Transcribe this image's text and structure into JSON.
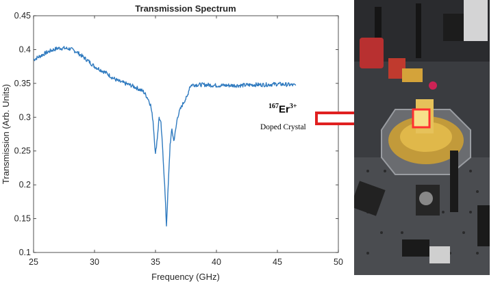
{
  "chart_data": {
    "type": "line",
    "title": "Transmission Spectrum",
    "xlabel": "Frequency (GHz)",
    "ylabel": "Transmission (Arb. Units)",
    "xlim": [
      25,
      50
    ],
    "ylim": [
      0.1,
      0.45
    ],
    "xticks": [
      25,
      30,
      35,
      40,
      45,
      50
    ],
    "yticks": [
      0.1,
      0.15,
      0.2,
      0.25,
      0.3,
      0.35,
      0.4,
      0.45
    ],
    "xtick_labels": [
      "25",
      "30",
      "35",
      "40",
      "45",
      "50"
    ],
    "ytick_labels": [
      "0.1",
      "0.15",
      "0.2",
      "0.25",
      "0.3",
      "0.35",
      "0.4",
      "0.45"
    ],
    "grid": false,
    "line_color": "#2f7abf",
    "series": [
      {
        "x": [
          25.0,
          25.5,
          26.0,
          26.5,
          27.0,
          27.5,
          28.0,
          28.5,
          29.0,
          29.5,
          30.0,
          30.5,
          31.0,
          31.5,
          32.0,
          32.5,
          33.0,
          33.5,
          34.0,
          34.2,
          34.4,
          34.6,
          34.8,
          35.0,
          35.15,
          35.3,
          35.45,
          35.6,
          35.75,
          35.9,
          36.05,
          36.2,
          36.35,
          36.5,
          36.65,
          36.8,
          37.0,
          37.2,
          37.4,
          37.6,
          37.8,
          38.0,
          39.0,
          40.0,
          41.0,
          42.0,
          43.0,
          44.0,
          45.0,
          46.0,
          46.5
        ],
        "y": [
          0.385,
          0.39,
          0.395,
          0.399,
          0.402,
          0.402,
          0.401,
          0.397,
          0.39,
          0.383,
          0.375,
          0.37,
          0.365,
          0.358,
          0.353,
          0.35,
          0.347,
          0.343,
          0.338,
          0.333,
          0.327,
          0.318,
          0.295,
          0.245,
          0.27,
          0.3,
          0.29,
          0.25,
          0.2,
          0.14,
          0.2,
          0.26,
          0.282,
          0.265,
          0.28,
          0.3,
          0.31,
          0.318,
          0.325,
          0.33,
          0.345,
          0.348,
          0.348,
          0.347,
          0.347,
          0.347,
          0.348,
          0.348,
          0.349,
          0.348,
          0.347
        ]
      }
    ]
  },
  "annotation": {
    "isotope_mass": "167",
    "element": "Er",
    "charge": "3+",
    "caption": "Doped Crystal"
  },
  "arrow_color": "#e02020"
}
